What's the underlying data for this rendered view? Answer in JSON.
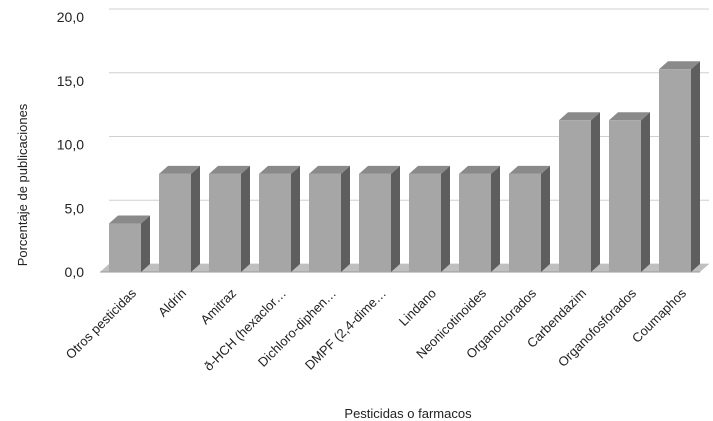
{
  "chart_data": {
    "type": "bar",
    "style": "3d-column",
    "xlabel": "Pesticidas o farmacos",
    "ylabel": "Porcentaje de publicaciones",
    "ylim": [
      0,
      20
    ],
    "yticks": [
      "0,0",
      "5,0",
      "10,0",
      "15,0",
      "20,0"
    ],
    "grid": true,
    "categories": [
      "Otros pesticidas",
      "Aldrin",
      "Amitraz",
      "ð-HCH (hexaclor…",
      "Dichloro-diphen…",
      "DMPF (2,4-dime…",
      "Lindano",
      "Neonicotinoides",
      "Organoclorados",
      "Carbendazim",
      "Organofosforados",
      "Coumaphos"
    ],
    "values": [
      3.8,
      7.7,
      7.7,
      7.7,
      7.7,
      7.7,
      7.7,
      7.7,
      7.7,
      11.9,
      11.9,
      15.9
    ],
    "colors": {
      "front": "#a6a6a6",
      "top": "#8a8a8a",
      "side": "#5e5e5e",
      "grid": "#d0d0d0",
      "floor": "#bfbfbf"
    }
  }
}
